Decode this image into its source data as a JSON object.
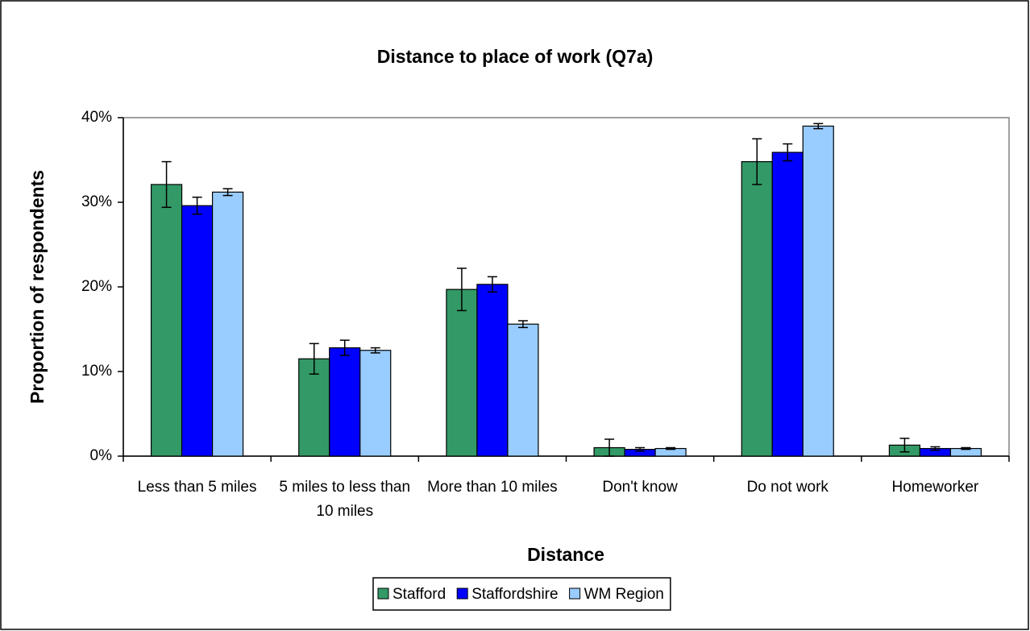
{
  "chart_data": {
    "type": "bar",
    "title": "Distance to place of work (Q7a)",
    "x_label": "Distance",
    "y_label": "Proportion of respondents",
    "categories": [
      "Less than 5 miles",
      "5 miles to less than 10 miles",
      "More than 10 miles",
      "Don't know",
      "Do not work",
      "Homeworker"
    ],
    "series": [
      {
        "name": "Stafford",
        "color": "#339966",
        "values": [
          32.1,
          11.5,
          19.7,
          1.0,
          34.8,
          1.3
        ],
        "errors": [
          2.7,
          1.8,
          2.5,
          1.0,
          2.7,
          0.8
        ]
      },
      {
        "name": "Staffordshire",
        "color": "#0000ff",
        "values": [
          29.6,
          12.8,
          20.3,
          0.8,
          35.9,
          0.9
        ],
        "errors": [
          1.0,
          0.9,
          0.9,
          0.2,
          1.0,
          0.2
        ]
      },
      {
        "name": "WM Region",
        "color": "#99ccff",
        "values": [
          31.2,
          12.5,
          15.6,
          0.9,
          39.0,
          0.9
        ],
        "errors": [
          0.4,
          0.3,
          0.4,
          0.1,
          0.3,
          0.1
        ]
      }
    ],
    "ylim": [
      0,
      40
    ],
    "yticks": [
      {
        "value": 0,
        "label": "0%"
      },
      {
        "value": 10,
        "label": "10%"
      },
      {
        "value": 20,
        "label": "20%"
      },
      {
        "value": 30,
        "label": "30%"
      },
      {
        "value": 40,
        "label": "40%"
      }
    ],
    "grid": false,
    "legend": "bottom"
  }
}
